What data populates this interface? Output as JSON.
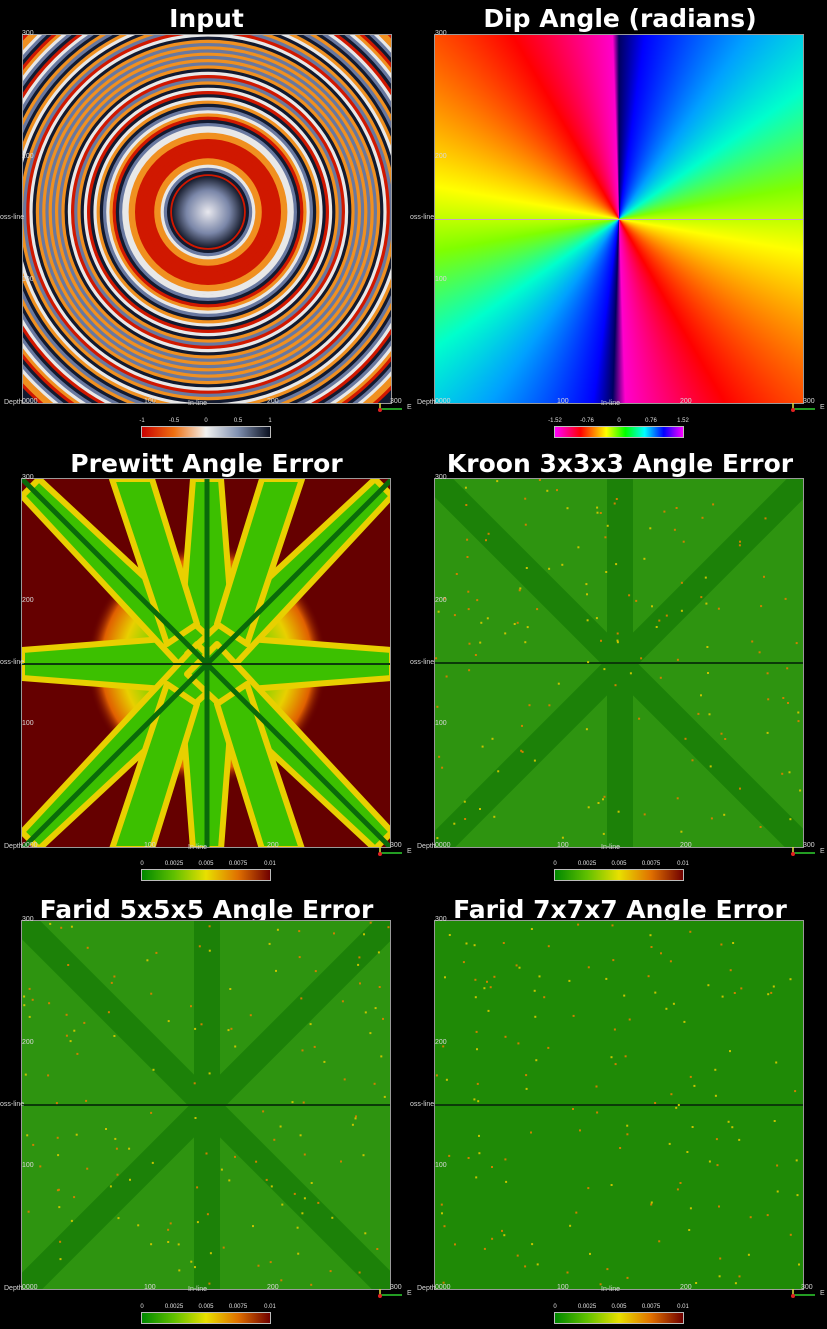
{
  "panels": [
    {
      "title": "Input",
      "ticks": {
        "top": "300",
        "mid_upper": "200",
        "mid_lower": "100",
        "x_mid1": "100",
        "x_mid2": "200",
        "x_right": "300",
        "origin": "0000"
      },
      "axis_labels": {
        "depth": "Depth",
        "inline": "In-line",
        "crossline": "oss-line"
      },
      "colorbar": {
        "ticks": [
          "-1",
          "-0.5",
          "0",
          "0.5",
          "1"
        ]
      }
    },
    {
      "title": "Dip Angle (radians)",
      "ticks": {
        "top": "300",
        "mid_upper": "200",
        "mid_lower": "100",
        "x_mid1": "100",
        "x_mid2": "200",
        "x_right": "300",
        "origin": "0000"
      },
      "axis_labels": {
        "depth": "Depth",
        "inline": "In-line",
        "crossline": "oss-line"
      },
      "colorbar": {
        "ticks": [
          "-1.52",
          "-0.76",
          "0",
          "0.76",
          "1.52"
        ]
      }
    },
    {
      "title": "Prewitt Angle Error",
      "ticks": {
        "top": "300",
        "mid_upper": "200",
        "mid_lower": "100",
        "x_mid1": "100",
        "x_mid2": "200",
        "x_right": "300",
        "origin": "0000"
      },
      "axis_labels": {
        "depth": "Depth",
        "inline": "In-line",
        "crossline": "oss-line"
      },
      "colorbar": {
        "ticks": [
          "0",
          "0.0025",
          "0.005",
          "0.0075",
          "0.01"
        ]
      }
    },
    {
      "title": "Kroon 3x3x3 Angle Error",
      "ticks": {
        "top": "300",
        "mid_upper": "200",
        "mid_lower": "100",
        "x_mid1": "100",
        "x_mid2": "200",
        "x_right": "300",
        "origin": "0000"
      },
      "axis_labels": {
        "depth": "Depth",
        "inline": "In-line",
        "crossline": "oss-line"
      },
      "colorbar": {
        "ticks": [
          "0",
          "0.0025",
          "0.005",
          "0.0075",
          "0.01"
        ]
      }
    },
    {
      "title": "Farid 5x5x5 Angle Error",
      "ticks": {
        "top": "300",
        "mid_upper": "200",
        "mid_lower": "100",
        "x_mid1": "100",
        "x_mid2": "200",
        "x_right": "300",
        "origin": "0000"
      },
      "axis_labels": {
        "depth": "Depth",
        "inline": "In-line",
        "crossline": "oss-line"
      },
      "colorbar": {
        "ticks": [
          "0",
          "0.0025",
          "0.005",
          "0.0075",
          "0.01"
        ]
      }
    },
    {
      "title": "Farid 7x7x7 Angle Error",
      "ticks": {
        "top": "300",
        "mid_upper": "200",
        "mid_lower": "100",
        "x_mid1": "100",
        "x_mid2": "200",
        "x_right": "300",
        "origin": "0000"
      },
      "axis_labels": {
        "depth": "Depth",
        "inline": "In-line",
        "crossline": "oss-line"
      },
      "colorbar": {
        "ticks": [
          "0",
          "0.0025",
          "0.005",
          "0.0075",
          "0.01"
        ]
      }
    }
  ],
  "orientation_label": "E",
  "colors": {
    "seismic": [
      "#cc1a00",
      "#f08a10",
      "#f2f2f2",
      "#6a7fa8",
      "#101830"
    ],
    "rainbow": [
      "#ff00ff",
      "#ff0000",
      "#ffff00",
      "#00ff00",
      "#00ffff",
      "#0000ff"
    ],
    "error": [
      "#008800",
      "#60c000",
      "#e8e000",
      "#e07000",
      "#700000"
    ]
  }
}
